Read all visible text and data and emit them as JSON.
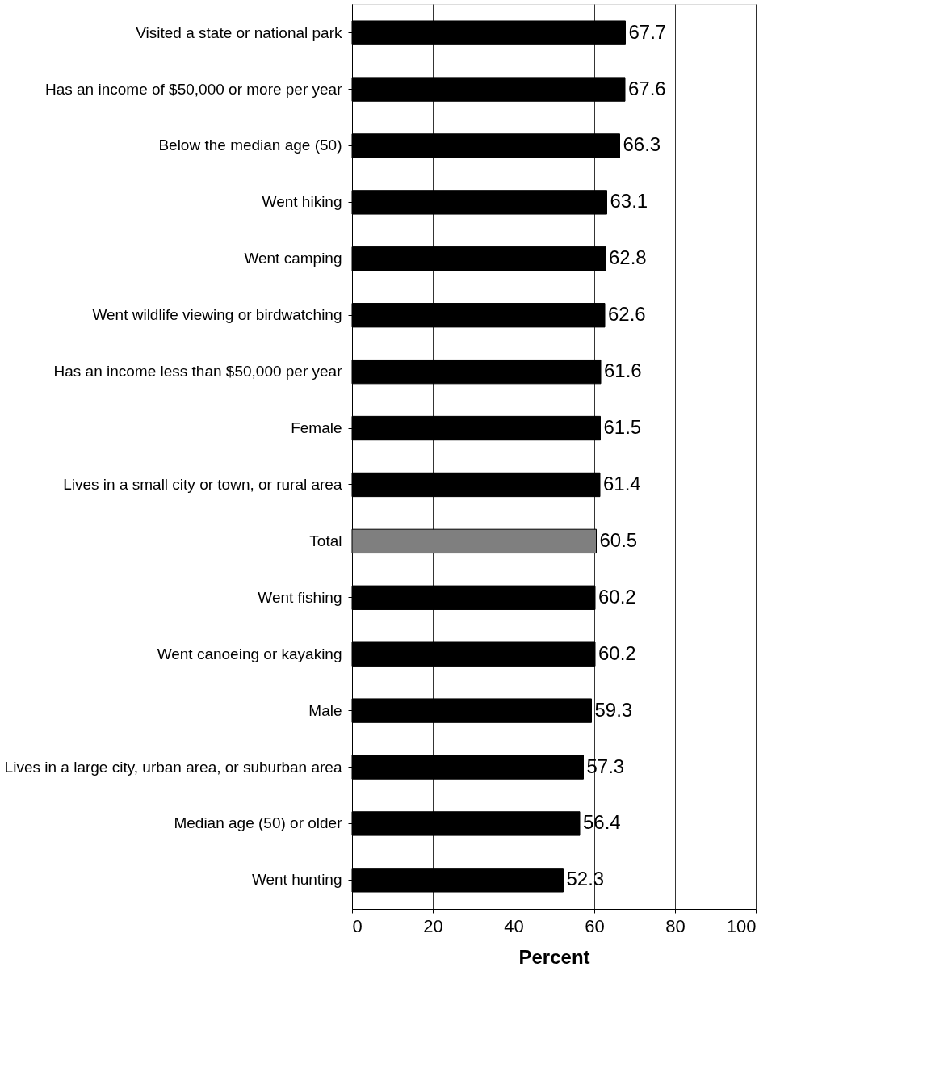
{
  "chart_data": {
    "type": "bar",
    "orientation": "horizontal",
    "xlabel": "Percent",
    "categories": [
      "Visited a state or national park",
      "Has an income of $50,000 or more per year",
      "Below the median age (50)",
      "Went hiking",
      "Went camping",
      "Went wildlife viewing or birdwatching",
      "Has an income less than $50,000 per year",
      "Female",
      "Lives in a small city or town, or rural area",
      "Total",
      "Went fishing",
      "Went canoeing or kayaking",
      "Male",
      "Lives in a large city, urban area, or suburban area",
      "Median age (50) or older",
      "Went hunting"
    ],
    "values": [
      67.7,
      67.6,
      66.3,
      63.1,
      62.8,
      62.6,
      61.6,
      61.5,
      61.4,
      60.5,
      60.2,
      60.2,
      59.3,
      57.3,
      56.4,
      52.3
    ],
    "colors": [
      "#000000",
      "#000000",
      "#000000",
      "#000000",
      "#000000",
      "#000000",
      "#000000",
      "#000000",
      "#000000",
      "#7f7f7f",
      "#000000",
      "#000000",
      "#000000",
      "#000000",
      "#000000",
      "#000000"
    ],
    "xlim": [
      0,
      100
    ],
    "xticks": [
      0,
      20,
      40,
      60,
      80,
      100
    ],
    "grid": "x",
    "data_labels": true
  }
}
